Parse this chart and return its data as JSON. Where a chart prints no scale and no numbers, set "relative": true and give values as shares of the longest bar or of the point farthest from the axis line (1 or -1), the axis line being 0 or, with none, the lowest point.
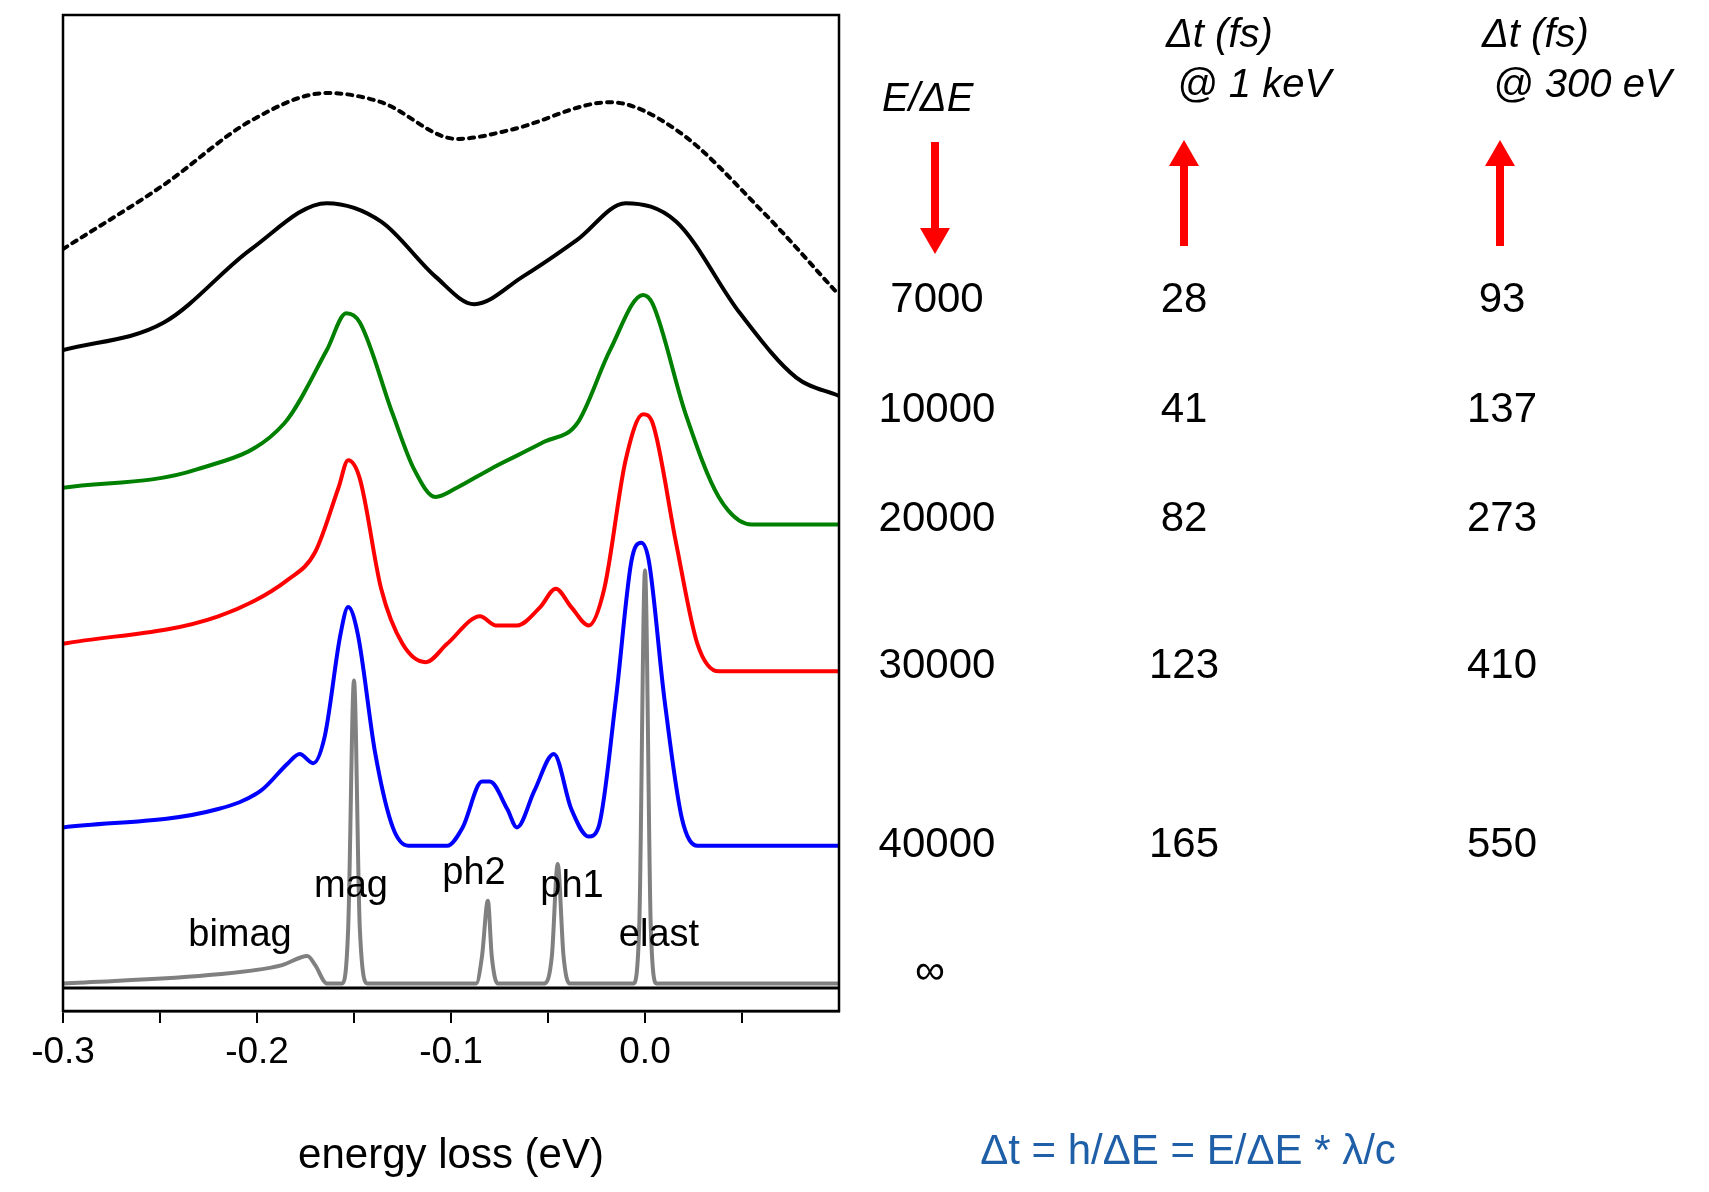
{
  "chart_data": {
    "type": "line",
    "relative": true,
    "xlabel": "energy loss (eV)",
    "xlim": [
      -0.3,
      0.1
    ],
    "xticks": [
      -0.3,
      {
        "value": -0.25,
        "label": null
      },
      -0.2,
      {
        "value": -0.15,
        "label": null
      },
      -0.1,
      {
        "value": -0.05,
        "label": null
      },
      {
        "value": 0,
        "label": "0.0"
      },
      {
        "value": 0.05,
        "label": null
      }
    ],
    "tick_labels": "x",
    "legend": false,
    "grid": false,
    "marker": "none",
    "line_style": "solid",
    "series": [
      {
        "color": "#000000",
        "line_style": "dotted",
        "x": [
          -0.3,
          -0.248,
          -0.203,
          -0.164,
          -0.136,
          -0.097,
          -0.069,
          -0.018,
          0.016,
          0.061,
          0.1
        ],
        "values": [
          0.83,
          0.9,
          0.97,
          1.0,
          0.99,
          0.95,
          0.96,
          0.99,
          0.96,
          0.87,
          0.78
        ]
      },
      {
        "color": "#000000",
        "x": [
          -0.3,
          -0.248,
          -0.203,
          -0.164,
          -0.136,
          -0.108,
          -0.088,
          -0.063,
          -0.035,
          -0.01,
          0.016,
          0.049,
          0.078,
          0.1
        ],
        "values": [
          0.72,
          0.75,
          0.83,
          0.88,
          0.86,
          0.8,
          0.77,
          0.8,
          0.84,
          0.88,
          0.86,
          0.76,
          0.69,
          0.67
        ]
      },
      {
        "color": "#008000",
        "x": [
          -0.3,
          -0.231,
          -0.186,
          -0.164,
          -0.154,
          -0.147,
          -0.13,
          -0.119,
          -0.108,
          -0.097,
          -0.08,
          -0.052,
          -0.035,
          -0.018,
          -0.001,
          0.004,
          0.021,
          0.038,
          0.055,
          0.1
        ],
        "values": [
          0.57,
          0.59,
          0.64,
          0.72,
          0.76,
          0.75,
          0.65,
          0.59,
          0.56,
          0.57,
          0.59,
          0.62,
          0.64,
          0.72,
          0.78,
          0.77,
          0.65,
          0.56,
          0.53,
          0.53
        ]
      },
      {
        "color": "#ff0000",
        "x": [
          -0.3,
          -0.22,
          -0.184,
          -0.17,
          -0.158,
          -0.153,
          -0.147,
          -0.136,
          -0.125,
          -0.113,
          -0.102,
          -0.085,
          -0.077,
          -0.066,
          -0.054,
          -0.046,
          -0.038,
          -0.029,
          -0.021,
          -0.01,
          -0.001,
          0.004,
          0.016,
          0.027,
          0.038,
          0.1
        ],
        "values": [
          0.4,
          0.43,
          0.47,
          0.5,
          0.57,
          0.6,
          0.58,
          0.46,
          0.4,
          0.38,
          0.4,
          0.43,
          0.42,
          0.42,
          0.44,
          0.46,
          0.44,
          0.42,
          0.46,
          0.6,
          0.65,
          0.64,
          0.51,
          0.4,
          0.37,
          0.37
        ]
      },
      {
        "color": "#0000ff",
        "x": [
          -0.3,
          -0.22,
          -0.198,
          -0.184,
          -0.178,
          -0.171,
          -0.165,
          -0.157,
          -0.153,
          -0.148,
          -0.139,
          -0.13,
          -0.122,
          -0.102,
          -0.094,
          -0.084,
          -0.08,
          -0.071,
          -0.066,
          -0.057,
          -0.047,
          -0.038,
          -0.029,
          -0.024,
          -0.015,
          -0.007,
          -0.002,
          0.002,
          0.01,
          0.019,
          0.027,
          0.1
        ],
        "values": [
          0.2,
          0.22,
          0.24,
          0.27,
          0.28,
          0.27,
          0.3,
          0.41,
          0.44,
          0.41,
          0.28,
          0.2,
          0.18,
          0.18,
          0.2,
          0.25,
          0.25,
          0.22,
          0.2,
          0.24,
          0.28,
          0.22,
          0.19,
          0.2,
          0.34,
          0.49,
          0.51,
          0.49,
          0.34,
          0.21,
          0.18,
          0.18
        ]
      },
      {
        "color": "#808080",
        "x": [
          -0.3,
          -0.22,
          -0.187,
          -0.174,
          -0.17,
          -0.164,
          -0.156,
          -0.153,
          -0.15,
          -0.147,
          -0.143,
          -0.087,
          -0.084,
          -0.081,
          -0.079,
          -0.076,
          -0.052,
          -0.048,
          -0.045,
          -0.042,
          -0.039,
          -0.006,
          -0.003,
          0,
          0.003,
          0.006,
          0.1
        ],
        "values": [
          0.03,
          0.04,
          0.05,
          0.06,
          0.05,
          0.03,
          0.03,
          0.09,
          0.36,
          0.09,
          0.03,
          0.03,
          0.06,
          0.12,
          0.06,
          0.03,
          0.03,
          0.06,
          0.16,
          0.06,
          0.03,
          0.03,
          0.09,
          0.48,
          0.09,
          0.03,
          0.03
        ]
      }
    ],
    "ref_lines": [
      {
        "axis": "y",
        "value": 0.025,
        "color": "#000000"
      }
    ],
    "annotations": [
      "E/ΔE",
      "Δt (fs)\n @ 1 keV",
      "Δt (fs)\n @ 300 eV",
      "7000",
      "28",
      "93",
      "10000",
      "41",
      "137",
      "20000",
      "82",
      "273",
      "30000",
      "123",
      "410",
      "40000",
      "165",
      "550",
      "∞",
      "Δt = h/ΔE = E/ΔE * λ/c",
      "bimag",
      "mag",
      "ph2",
      "ph1",
      "elast"
    ]
  }
}
